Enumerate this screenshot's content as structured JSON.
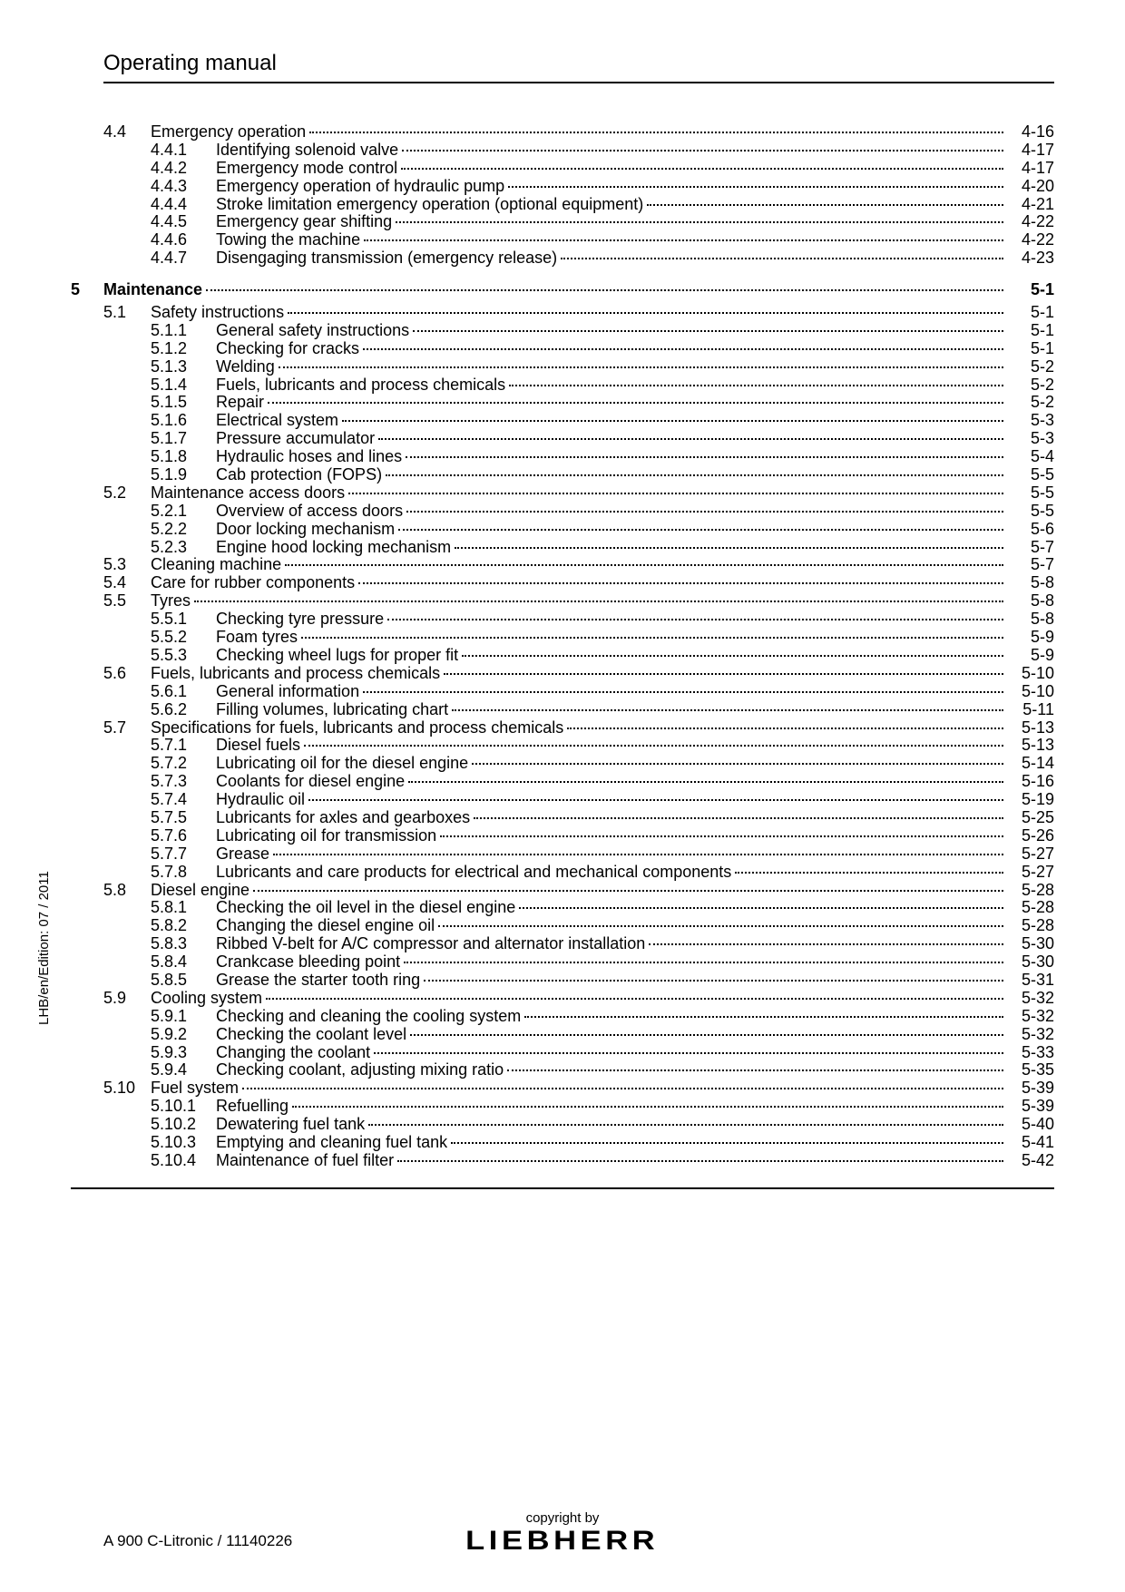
{
  "header": {
    "title": "Operating manual"
  },
  "side_text": "LHB/en/Edition: 07 / 2011",
  "footer": {
    "left": "A 900 C-Litronic / 11140226",
    "copyright": "copyright by",
    "brand": "LIEBHERR"
  },
  "toc": [
    {
      "type": "section",
      "chapter": "",
      "sec": "4.4",
      "sub": "",
      "title": "Emergency operation",
      "page": "4-16"
    },
    {
      "type": "subsection",
      "chapter": "",
      "sec": "",
      "sub": "4.4.1",
      "title": "Identifying solenoid valve",
      "page": "4-17"
    },
    {
      "type": "subsection",
      "chapter": "",
      "sec": "",
      "sub": "4.4.2",
      "title": "Emergency mode control",
      "page": "4-17"
    },
    {
      "type": "subsection",
      "chapter": "",
      "sec": "",
      "sub": "4.4.3",
      "title": "Emergency operation of hydraulic pump",
      "page": "4-20"
    },
    {
      "type": "subsection",
      "chapter": "",
      "sec": "",
      "sub": "4.4.4",
      "title": "Stroke limitation emergency operation (optional equipment)",
      "page": "4-21"
    },
    {
      "type": "subsection",
      "chapter": "",
      "sec": "",
      "sub": "4.4.5",
      "title": "Emergency gear shifting",
      "page": "4-22"
    },
    {
      "type": "subsection",
      "chapter": "",
      "sec": "",
      "sub": "4.4.6",
      "title": "Towing the machine",
      "page": "4-22"
    },
    {
      "type": "subsection",
      "chapter": "",
      "sec": "",
      "sub": "4.4.7",
      "title": "Disengaging transmission (emergency release)",
      "page": "4-23"
    },
    {
      "type": "chapter",
      "chapter": "5",
      "sec": "",
      "sub": "",
      "title": "Maintenance",
      "page": "5-1"
    },
    {
      "type": "section",
      "chapter": "",
      "sec": "5.1",
      "sub": "",
      "title": "Safety instructions",
      "page": "5-1"
    },
    {
      "type": "subsection",
      "chapter": "",
      "sec": "",
      "sub": "5.1.1",
      "title": "General safety instructions",
      "page": "5-1"
    },
    {
      "type": "subsection",
      "chapter": "",
      "sec": "",
      "sub": "5.1.2",
      "title": "Checking for cracks",
      "page": "5-1"
    },
    {
      "type": "subsection",
      "chapter": "",
      "sec": "",
      "sub": "5.1.3",
      "title": "Welding",
      "page": "5-2"
    },
    {
      "type": "subsection",
      "chapter": "",
      "sec": "",
      "sub": "5.1.4",
      "title": "Fuels, lubricants and process chemicals",
      "page": "5-2"
    },
    {
      "type": "subsection",
      "chapter": "",
      "sec": "",
      "sub": "5.1.5",
      "title": "Repair",
      "page": "5-2"
    },
    {
      "type": "subsection",
      "chapter": "",
      "sec": "",
      "sub": "5.1.6",
      "title": "Electrical system",
      "page": "5-3"
    },
    {
      "type": "subsection",
      "chapter": "",
      "sec": "",
      "sub": "5.1.7",
      "title": "Pressure accumulator",
      "page": "5-3"
    },
    {
      "type": "subsection",
      "chapter": "",
      "sec": "",
      "sub": "5.1.8",
      "title": "Hydraulic hoses and lines",
      "page": "5-4"
    },
    {
      "type": "subsection",
      "chapter": "",
      "sec": "",
      "sub": "5.1.9",
      "title": "Cab protection (FOPS)",
      "page": "5-5"
    },
    {
      "type": "section",
      "chapter": "",
      "sec": "5.2",
      "sub": "",
      "title": "Maintenance access doors",
      "page": "5-5"
    },
    {
      "type": "subsection",
      "chapter": "",
      "sec": "",
      "sub": "5.2.1",
      "title": "Overview of access doors",
      "page": "5-5"
    },
    {
      "type": "subsection",
      "chapter": "",
      "sec": "",
      "sub": "5.2.2",
      "title": "Door locking mechanism",
      "page": "5-6"
    },
    {
      "type": "subsection",
      "chapter": "",
      "sec": "",
      "sub": "5.2.3",
      "title": "Engine hood locking mechanism",
      "page": "5-7"
    },
    {
      "type": "section",
      "chapter": "",
      "sec": "5.3",
      "sub": "",
      "title": "Cleaning machine",
      "page": "5-7"
    },
    {
      "type": "section",
      "chapter": "",
      "sec": "5.4",
      "sub": "",
      "title": "Care for rubber components",
      "page": "5-8"
    },
    {
      "type": "section",
      "chapter": "",
      "sec": "5.5",
      "sub": "",
      "title": "Tyres",
      "page": "5-8"
    },
    {
      "type": "subsection",
      "chapter": "",
      "sec": "",
      "sub": "5.5.1",
      "title": "Checking tyre pressure",
      "page": "5-8"
    },
    {
      "type": "subsection",
      "chapter": "",
      "sec": "",
      "sub": "5.5.2",
      "title": "Foam tyres",
      "page": "5-9"
    },
    {
      "type": "subsection",
      "chapter": "",
      "sec": "",
      "sub": "5.5.3",
      "title": "Checking wheel lugs for proper fit",
      "page": "5-9"
    },
    {
      "type": "section",
      "chapter": "",
      "sec": "5.6",
      "sub": "",
      "title": "Fuels, lubricants and process chemicals",
      "page": "5-10"
    },
    {
      "type": "subsection",
      "chapter": "",
      "sec": "",
      "sub": "5.6.1",
      "title": "General information",
      "page": "5-10"
    },
    {
      "type": "subsection",
      "chapter": "",
      "sec": "",
      "sub": "5.6.2",
      "title": "Filling volumes, lubricating chart",
      "page": "5-11"
    },
    {
      "type": "section",
      "chapter": "",
      "sec": "5.7",
      "sub": "",
      "title": "Specifications for fuels, lubricants and process chemicals",
      "page": "5-13"
    },
    {
      "type": "subsection",
      "chapter": "",
      "sec": "",
      "sub": "5.7.1",
      "title": "Diesel fuels",
      "page": "5-13"
    },
    {
      "type": "subsection",
      "chapter": "",
      "sec": "",
      "sub": "5.7.2",
      "title": "Lubricating oil for the diesel engine",
      "page": "5-14"
    },
    {
      "type": "subsection",
      "chapter": "",
      "sec": "",
      "sub": "5.7.3",
      "title": "Coolants for diesel engine",
      "page": "5-16"
    },
    {
      "type": "subsection",
      "chapter": "",
      "sec": "",
      "sub": "5.7.4",
      "title": "Hydraulic oil",
      "page": "5-19"
    },
    {
      "type": "subsection",
      "chapter": "",
      "sec": "",
      "sub": "5.7.5",
      "title": "Lubricants for axles and gearboxes",
      "page": "5-25"
    },
    {
      "type": "subsection",
      "chapter": "",
      "sec": "",
      "sub": "5.7.6",
      "title": "Lubricating oil for transmission",
      "page": "5-26"
    },
    {
      "type": "subsection",
      "chapter": "",
      "sec": "",
      "sub": "5.7.7",
      "title": "Grease",
      "page": "5-27"
    },
    {
      "type": "subsection",
      "chapter": "",
      "sec": "",
      "sub": "5.7.8",
      "title": "Lubricants and care products for electrical and mechanical components",
      "page": "5-27"
    },
    {
      "type": "section",
      "chapter": "",
      "sec": "5.8",
      "sub": "",
      "title": "Diesel engine",
      "page": "5-28"
    },
    {
      "type": "subsection",
      "chapter": "",
      "sec": "",
      "sub": "5.8.1",
      "title": "Checking the oil level in the diesel engine",
      "page": "5-28"
    },
    {
      "type": "subsection",
      "chapter": "",
      "sec": "",
      "sub": "5.8.2",
      "title": "Changing the diesel engine oil",
      "page": "5-28"
    },
    {
      "type": "subsection",
      "chapter": "",
      "sec": "",
      "sub": "5.8.3",
      "title": "Ribbed V-belt for A/C compressor and alternator installation",
      "page": "5-30"
    },
    {
      "type": "subsection",
      "chapter": "",
      "sec": "",
      "sub": "5.8.4",
      "title": "Crankcase bleeding point",
      "page": "5-30"
    },
    {
      "type": "subsection",
      "chapter": "",
      "sec": "",
      "sub": "5.8.5",
      "title": "Grease the starter tooth ring",
      "page": "5-31"
    },
    {
      "type": "section",
      "chapter": "",
      "sec": "5.9",
      "sub": "",
      "title": "Cooling system",
      "page": "5-32"
    },
    {
      "type": "subsection",
      "chapter": "",
      "sec": "",
      "sub": "5.9.1",
      "title": "Checking and cleaning the cooling system",
      "page": "5-32"
    },
    {
      "type": "subsection",
      "chapter": "",
      "sec": "",
      "sub": "5.9.2",
      "title": "Checking the coolant level",
      "page": "5-32"
    },
    {
      "type": "subsection",
      "chapter": "",
      "sec": "",
      "sub": "5.9.3",
      "title": "Changing the coolant",
      "page": "5-33"
    },
    {
      "type": "subsection",
      "chapter": "",
      "sec": "",
      "sub": "5.9.4",
      "title": "Checking coolant, adjusting mixing ratio",
      "page": "5-35"
    },
    {
      "type": "section",
      "chapter": "",
      "sec": "5.10",
      "sub": "",
      "title": "Fuel system",
      "page": "5-39"
    },
    {
      "type": "subsection",
      "chapter": "",
      "sec": "",
      "sub": "5.10.1",
      "title": "Refuelling",
      "page": "5-39"
    },
    {
      "type": "subsection",
      "chapter": "",
      "sec": "",
      "sub": "5.10.2",
      "title": "Dewatering fuel tank",
      "page": "5-40"
    },
    {
      "type": "subsection",
      "chapter": "",
      "sec": "",
      "sub": "5.10.3",
      "title": "Emptying and cleaning fuel tank",
      "page": "5-41"
    },
    {
      "type": "subsection",
      "chapter": "",
      "sec": "",
      "sub": "5.10.4",
      "title": "Maintenance of fuel filter",
      "page": "5-42"
    }
  ]
}
